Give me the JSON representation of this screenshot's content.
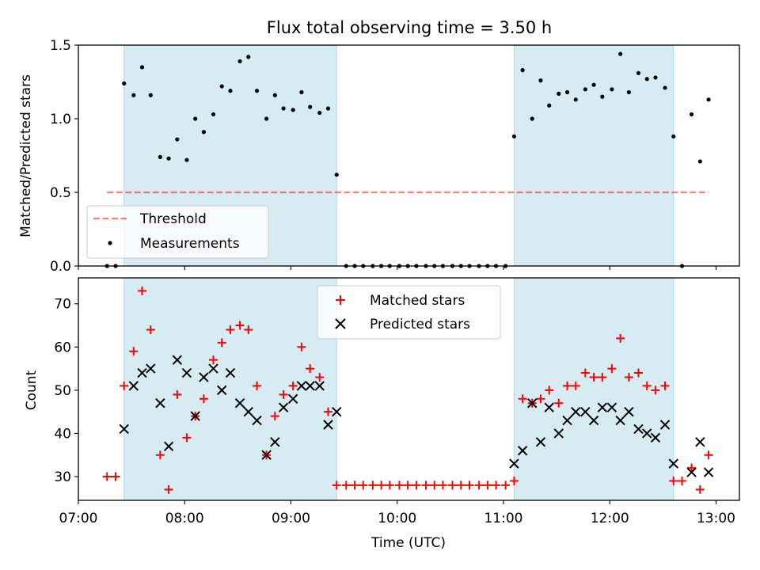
{
  "colors": {
    "band": "#add8e6",
    "threshold": "#ff0000",
    "matched": "#ff0000",
    "predicted": "#000000",
    "measure": "#000000"
  },
  "chart_data": [
    {
      "type": "scatter",
      "title": "Flux total observing time = 3.50 h",
      "xlabel": "",
      "ylabel": "Matched/Predicted stars",
      "xlim": [
        7.0,
        13.22
      ],
      "ylim": [
        0.0,
        1.5
      ],
      "yticks": [
        0.0,
        0.5,
        1.0,
        1.5
      ],
      "ytick_labels": [
        "0.0",
        "0.5",
        "1.0",
        "1.5"
      ],
      "shaded_spans": [
        [
          7.43,
          9.43
        ],
        [
          11.1,
          12.6
        ]
      ],
      "threshold": {
        "name": "Threshold",
        "value": 0.5,
        "x_range": [
          7.27,
          12.93
        ]
      },
      "legend": [
        "Threshold",
        "Measurements"
      ],
      "series": [
        {
          "name": "Measurements",
          "x": [
            7.27,
            7.35,
            7.43,
            7.52,
            7.6,
            7.68,
            7.77,
            7.85,
            7.93,
            8.02,
            8.1,
            8.18,
            8.27,
            8.35,
            8.43,
            8.52,
            8.6,
            8.68,
            8.77,
            8.85,
            8.93,
            9.02,
            9.1,
            9.18,
            9.27,
            9.35,
            9.43,
            9.52,
            9.6,
            9.68,
            9.77,
            9.85,
            9.93,
            10.02,
            10.1,
            10.18,
            10.27,
            10.35,
            10.43,
            10.52,
            10.6,
            10.68,
            10.77,
            10.85,
            10.93,
            11.02,
            11.1,
            11.18,
            11.27,
            11.35,
            11.43,
            11.52,
            11.6,
            11.68,
            11.77,
            11.85,
            11.93,
            12.02,
            12.1,
            12.18,
            12.27,
            12.35,
            12.43,
            12.52,
            12.6,
            12.68,
            12.77,
            12.85,
            12.93
          ],
          "y": [
            0,
            0,
            1.24,
            1.16,
            1.35,
            1.16,
            0.74,
            0.73,
            0.86,
            0.72,
            1.0,
            0.91,
            1.03,
            1.22,
            1.19,
            1.39,
            1.42,
            1.19,
            1.0,
            1.16,
            1.07,
            1.06,
            1.18,
            1.08,
            1.04,
            1.07,
            0.62,
            0,
            0,
            0,
            0,
            0,
            0,
            0,
            0,
            0,
            0,
            0,
            0,
            0,
            0,
            0,
            0,
            0,
            0,
            0,
            0.88,
            1.33,
            1.0,
            1.26,
            1.09,
            1.17,
            1.18,
            1.13,
            1.2,
            1.23,
            1.15,
            1.2,
            1.44,
            1.18,
            1.31,
            1.27,
            1.28,
            1.21,
            0.88,
            0,
            1.03,
            0.71,
            1.13
          ]
        }
      ]
    },
    {
      "type": "scatter",
      "title": "",
      "xlabel": "Time (UTC)",
      "ylabel": "Count",
      "xlim": [
        7.0,
        13.22
      ],
      "ylim": [
        24.5,
        76
      ],
      "yticks": [
        30,
        40,
        50,
        60,
        70
      ],
      "ytick_labels": [
        "30",
        "40",
        "50",
        "60",
        "70"
      ],
      "xticks": [
        7,
        8,
        9,
        10,
        11,
        12,
        13
      ],
      "xtick_labels": [
        "07:00",
        "08:00",
        "09:00",
        "10:00",
        "11:00",
        "12:00",
        "13:00"
      ],
      "shaded_spans": [
        [
          7.43,
          9.43
        ],
        [
          11.1,
          12.6
        ]
      ],
      "legend": [
        "Matched stars",
        "Predicted stars"
      ],
      "series": [
        {
          "name": "Matched stars",
          "x": [
            7.27,
            7.35,
            7.43,
            7.52,
            7.6,
            7.68,
            7.77,
            7.85,
            7.93,
            8.02,
            8.1,
            8.18,
            8.27,
            8.35,
            8.43,
            8.52,
            8.6,
            8.68,
            8.77,
            8.85,
            8.93,
            9.02,
            9.1,
            9.18,
            9.27,
            9.35,
            9.43,
            9.52,
            9.6,
            9.68,
            9.77,
            9.85,
            9.93,
            10.02,
            10.1,
            10.18,
            10.27,
            10.35,
            10.43,
            10.52,
            10.6,
            10.68,
            10.77,
            10.85,
            10.93,
            11.02,
            11.1,
            11.18,
            11.27,
            11.35,
            11.43,
            11.52,
            11.6,
            11.68,
            11.77,
            11.85,
            11.93,
            12.02,
            12.1,
            12.18,
            12.27,
            12.35,
            12.43,
            12.52,
            12.6,
            12.68,
            12.77,
            12.85,
            12.93
          ],
          "y": [
            30,
            30,
            51,
            59,
            73,
            64,
            35,
            27,
            49,
            39,
            44,
            48,
            57,
            61,
            64,
            65,
            64,
            51,
            35,
            44,
            49,
            51,
            60,
            55,
            53,
            45,
            28,
            28,
            28,
            28,
            28,
            28,
            28,
            28,
            28,
            28,
            28,
            28,
            28,
            28,
            28,
            28,
            28,
            28,
            28,
            28,
            29,
            48,
            47,
            48,
            50,
            47,
            51,
            51,
            54,
            53,
            53,
            55,
            62,
            53,
            54,
            51,
            50,
            51,
            29,
            29,
            32,
            27,
            35
          ]
        },
        {
          "name": "Predicted stars",
          "x": [
            7.43,
            7.52,
            7.6,
            7.68,
            7.77,
            7.85,
            7.93,
            8.02,
            8.1,
            8.18,
            8.27,
            8.35,
            8.43,
            8.52,
            8.6,
            8.68,
            8.77,
            8.85,
            8.93,
            9.02,
            9.1,
            9.18,
            9.27,
            9.35,
            9.43,
            11.1,
            11.18,
            11.27,
            11.35,
            11.43,
            11.52,
            11.6,
            11.68,
            11.77,
            11.85,
            11.93,
            12.02,
            12.1,
            12.18,
            12.27,
            12.35,
            12.43,
            12.52,
            12.6,
            12.77,
            12.85,
            12.93
          ],
          "y": [
            41,
            51,
            54,
            55,
            47,
            37,
            57,
            54,
            44,
            53,
            55,
            50,
            54,
            47,
            45,
            43,
            35,
            38,
            46,
            48,
            51,
            51,
            51,
            42,
            45,
            33,
            36,
            47,
            38,
            46,
            40,
            43,
            45,
            45,
            43,
            46,
            46,
            43,
            45,
            41,
            40,
            39,
            42,
            33,
            31,
            38,
            31
          ]
        }
      ]
    }
  ]
}
